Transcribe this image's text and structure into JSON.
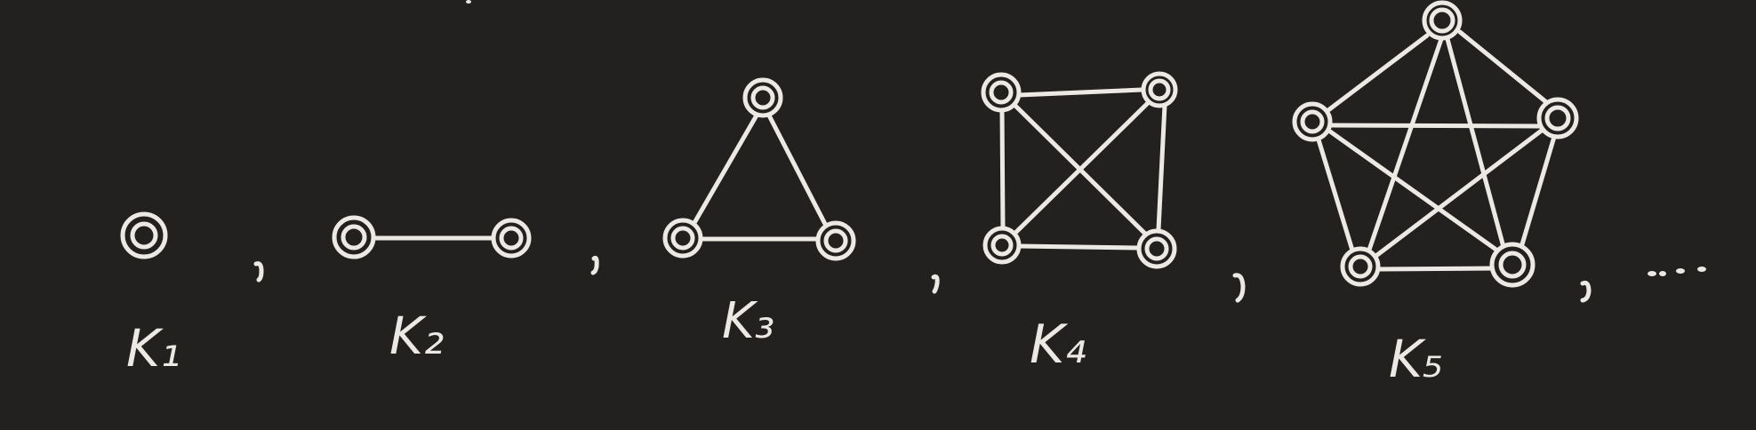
{
  "colors": {
    "background": "#222120",
    "ink": "#ECE9E4"
  },
  "labels": {
    "k1": "K₁",
    "k2": "K₂",
    "k3": "K₃",
    "k4": "K₄",
    "k5": "K₅",
    "comma": ",",
    "ellipsis": "..."
  }
}
